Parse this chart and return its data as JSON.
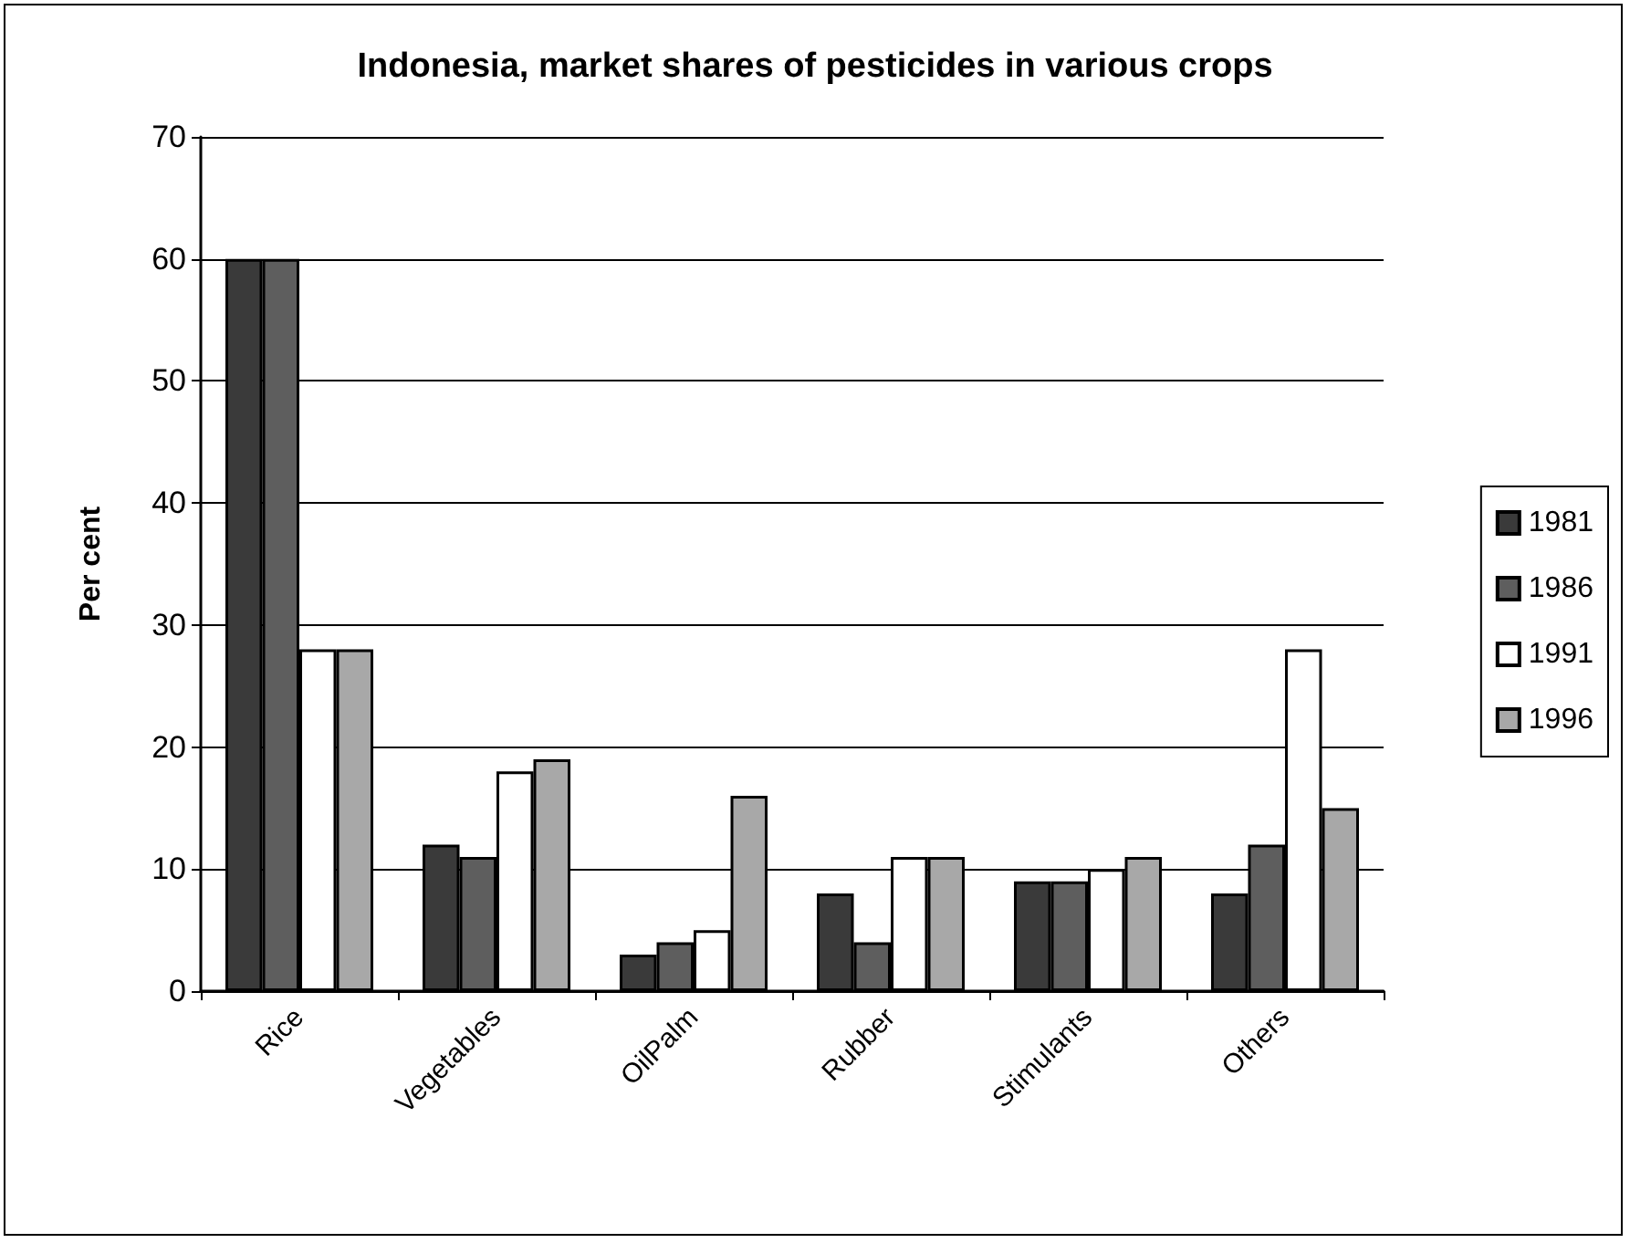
{
  "chart_data": {
    "type": "bar",
    "title": "Indonesia, market shares of pesticides in various crops",
    "ylabel": "Per cent",
    "categories": [
      "Rice",
      "Vegetables",
      "OilPalm",
      "Rubber",
      "Stimulants",
      "Others"
    ],
    "series": [
      {
        "name": "1981",
        "color": "#3a3a3a",
        "values": [
          60,
          12,
          3,
          8,
          9,
          8
        ]
      },
      {
        "name": "1986",
        "color": "#5e5e5e",
        "values": [
          60,
          11,
          4,
          4,
          9,
          12
        ]
      },
      {
        "name": "1991",
        "color": "#ffffff",
        "values": [
          28,
          18,
          5,
          11,
          10,
          28
        ]
      },
      {
        "name": "1996",
        "color": "#a8a8a8",
        "values": [
          28,
          19,
          16,
          11,
          11,
          15
        ]
      }
    ],
    "ylim": [
      0,
      70
    ],
    "yticks": [
      0,
      10,
      20,
      30,
      40,
      50,
      60,
      70
    ],
    "grid": "y",
    "legend": "right"
  }
}
